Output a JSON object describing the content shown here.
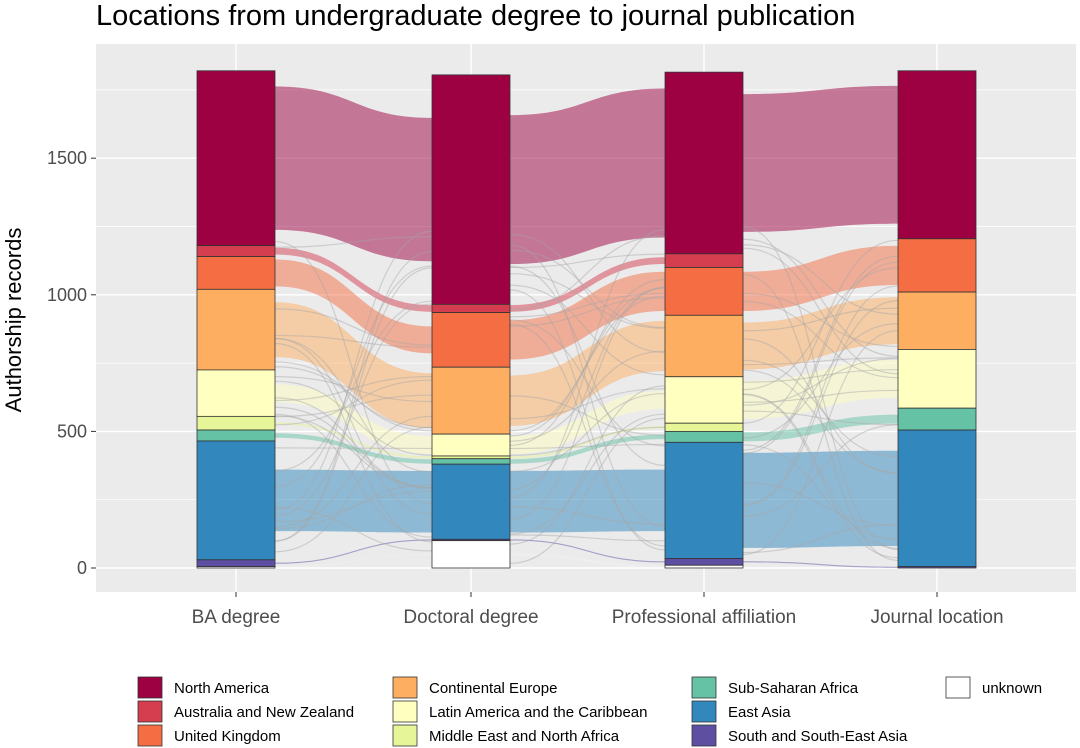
{
  "chart_data": {
    "type": "alluvial",
    "title": "Locations from undergraduate degree to journal publication",
    "xlabel": "",
    "ylabel": "Authorship records",
    "ylim": [
      0,
      1820
    ],
    "yticks": [
      0,
      500,
      1000,
      1500
    ],
    "grid": true,
    "legend_position": "bottom",
    "axes": [
      "BA degree",
      "Doctoral degree",
      "Professional affiliation",
      "Journal location"
    ],
    "categories": [
      {
        "name": "North America",
        "color": "#9E0142"
      },
      {
        "name": "Australia and New Zealand",
        "color": "#D53E4F"
      },
      {
        "name": "United Kingdom",
        "color": "#F46D43"
      },
      {
        "name": "Continental Europe",
        "color": "#FDAE61"
      },
      {
        "name": "Latin America and the Caribbean",
        "color": "#FFFFBF"
      },
      {
        "name": "Middle East and North Africa",
        "color": "#E6F598"
      },
      {
        "name": "Sub-Saharan Africa",
        "color": "#66C2A5"
      },
      {
        "name": "East Asia",
        "color": "#3288BD"
      },
      {
        "name": "South and South-East Asia",
        "color": "#5E4FA2"
      },
      {
        "name": "unknown",
        "color": "#FFFFFF"
      }
    ],
    "stacks": [
      {
        "axis": "BA degree",
        "values": [
          {
            "category": "North America",
            "value": 640
          },
          {
            "category": "Australia and New Zealand",
            "value": 40
          },
          {
            "category": "United Kingdom",
            "value": 120
          },
          {
            "category": "Continental Europe",
            "value": 295
          },
          {
            "category": "Latin America and the Caribbean",
            "value": 170
          },
          {
            "category": "Middle East and North Africa",
            "value": 50
          },
          {
            "category": "Sub-Saharan Africa",
            "value": 40
          },
          {
            "category": "East Asia",
            "value": 435
          },
          {
            "category": "South and South-East Asia",
            "value": 25
          },
          {
            "category": "unknown",
            "value": 5
          }
        ]
      },
      {
        "axis": "Doctoral degree",
        "values": [
          {
            "category": "North America",
            "value": 840
          },
          {
            "category": "Australia and New Zealand",
            "value": 30
          },
          {
            "category": "United Kingdom",
            "value": 200
          },
          {
            "category": "Continental Europe",
            "value": 245
          },
          {
            "category": "Latin America and the Caribbean",
            "value": 80
          },
          {
            "category": "Middle East and North Africa",
            "value": 10
          },
          {
            "category": "Sub-Saharan Africa",
            "value": 20
          },
          {
            "category": "East Asia",
            "value": 275
          },
          {
            "category": "South and South-East Asia",
            "value": 5
          },
          {
            "category": "unknown",
            "value": 100
          }
        ]
      },
      {
        "axis": "Professional affiliation",
        "values": [
          {
            "category": "North America",
            "value": 665
          },
          {
            "category": "Australia and New Zealand",
            "value": 50
          },
          {
            "category": "United Kingdom",
            "value": 175
          },
          {
            "category": "Continental Europe",
            "value": 225
          },
          {
            "category": "Latin America and the Caribbean",
            "value": 170
          },
          {
            "category": "Middle East and North Africa",
            "value": 30
          },
          {
            "category": "Sub-Saharan Africa",
            "value": 40
          },
          {
            "category": "East Asia",
            "value": 425
          },
          {
            "category": "South and South-East Asia",
            "value": 25
          },
          {
            "category": "unknown",
            "value": 10
          }
        ]
      },
      {
        "axis": "Journal location",
        "values": [
          {
            "category": "North America",
            "value": 615
          },
          {
            "category": "United Kingdom",
            "value": 195
          },
          {
            "category": "Continental Europe",
            "value": 210
          },
          {
            "category": "Latin America and the Caribbean",
            "value": 215
          },
          {
            "category": "Sub-Saharan Africa",
            "value": 80
          },
          {
            "category": "East Asia",
            "value": 500
          },
          {
            "category": "South and South-East Asia",
            "value": 5
          }
        ]
      }
    ]
  }
}
